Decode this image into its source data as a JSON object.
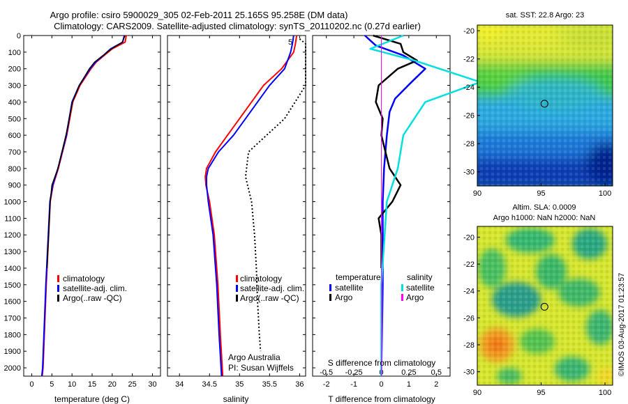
{
  "title": {
    "line1": "Argo profile: csiro 5900029_305 02-Feb-2011 25.165S 95.258E (DM data)",
    "line2": "Climatology: CARS2009. Satellite-adjusted climatology: synTS_20110202.nc (0.27d earlier)"
  },
  "depth_ticks": [
    "0",
    "100",
    "200",
    "300",
    "400",
    "500",
    "600",
    "700",
    "800",
    "900",
    "1000",
    "1100",
    "1200",
    "1300",
    "1400",
    "1500",
    "1600",
    "1700",
    "1800",
    "1900",
    "2000"
  ],
  "credit": "©IMOS 03-Aug-2017 01:23:57",
  "colors": {
    "climatology": "#ff0000",
    "satellite": "#0000ff",
    "argo": "#000000",
    "sat_salinity": "#00e0e0",
    "argo_salinity": "#ff00ff"
  },
  "chart_data": [
    {
      "id": "temperature",
      "type": "line",
      "xlabel": "temperature (deg C)",
      "xlim": [
        -2,
        32
      ],
      "ylim": [
        2050,
        0
      ],
      "xticks": [
        "0",
        "5",
        "10",
        "15",
        "20",
        "25",
        "30"
      ],
      "legend": {
        "entries": [
          "climatology",
          "satellite-adj. clim.",
          "Argo(..raw -QC)"
        ],
        "placement": "lower-center"
      },
      "series": [
        {
          "name": "climatology",
          "depth": [
            0,
            40,
            80,
            120,
            160,
            200,
            300,
            400,
            600,
            800,
            900,
            1000,
            1500,
            2000,
            2050
          ],
          "values": [
            23.5,
            23.2,
            20,
            18,
            16,
            14.7,
            12,
            10.2,
            8.7,
            6.6,
            5.3,
            4.6,
            3.6,
            2.8,
            2.6
          ]
        },
        {
          "name": "satellite-adj. clim.",
          "depth": [
            0,
            40,
            80,
            120,
            160,
            200,
            300,
            400,
            600,
            800,
            900,
            1000,
            1500,
            2000,
            2050
          ],
          "values": [
            23.0,
            22.6,
            19.6,
            17.8,
            15.8,
            14.5,
            11.8,
            10.0,
            8.6,
            6.5,
            5.2,
            4.5,
            3.5,
            2.7,
            2.5
          ]
        },
        {
          "name": "Argo(..raw -QC)",
          "depth": [
            0,
            40,
            80,
            120,
            160,
            200,
            300,
            400,
            600,
            800,
            900,
            1000,
            1200,
            1400
          ],
          "values": [
            23.2,
            22.5,
            19.8,
            17.7,
            15.6,
            14.3,
            11.8,
            10.1,
            8.5,
            6.5,
            5.0,
            4.6,
            4.2,
            3.8
          ]
        }
      ]
    },
    {
      "id": "salinity",
      "type": "line",
      "xlabel": "salinity",
      "xlim": [
        33.8,
        36.1
      ],
      "ylim": [
        2050,
        0
      ],
      "xticks": [
        "34",
        "34.5",
        "35",
        "35.5",
        "36"
      ],
      "legend": {
        "entries": [
          "climatology",
          "satellite-adj. clim.",
          "Argo(..raw -QC)"
        ],
        "placement": "lower-right"
      },
      "annotations": [
        "Argo Australia",
        "PI: Susan Wijffels",
        "5"
      ],
      "series": [
        {
          "name": "climatology",
          "depth": [
            0,
            50,
            100,
            200,
            300,
            400,
            500,
            600,
            700,
            800,
            850,
            900,
            1000,
            1200,
            1500,
            1800,
            2050
          ],
          "values": [
            35.95,
            35.93,
            35.9,
            35.7,
            35.4,
            35.2,
            35.0,
            34.8,
            34.6,
            34.45,
            34.43,
            34.44,
            34.5,
            34.58,
            34.64,
            34.68,
            34.72
          ]
        },
        {
          "name": "satellite-adj. clim.",
          "depth": [
            0,
            50,
            100,
            200,
            300,
            400,
            500,
            600,
            700,
            800,
            850,
            900,
            1000,
            1200,
            1500,
            1800,
            2050
          ],
          "values": [
            35.9,
            35.88,
            35.85,
            35.75,
            35.5,
            35.3,
            35.1,
            34.9,
            34.65,
            34.48,
            34.45,
            34.45,
            34.48,
            34.56,
            34.62,
            34.66,
            34.7
          ]
        },
        {
          "name": "Argo(..raw -QC)",
          "depth": [
            20,
            50,
            300,
            500,
            700,
            850,
            1000,
            1200,
            1400,
            1600,
            1800,
            1900
          ],
          "values": [
            36.0,
            36.1,
            36.1,
            35.75,
            35.15,
            35.1,
            35.2,
            35.25,
            35.28,
            35.3,
            35.33,
            35.35
          ]
        }
      ]
    },
    {
      "id": "difference",
      "type": "line",
      "xlabel": "T difference from climatology",
      "xlabel_top": "S difference from climatology",
      "xlim": [
        -2.5,
        2.5
      ],
      "ylim": [
        2050,
        0
      ],
      "xticks": [
        "-2",
        "-1",
        "0",
        "1",
        "2"
      ],
      "xticks_top": [
        "-0.5",
        "-0.25",
        "0",
        "0.25",
        "0.5"
      ],
      "legend": {
        "headers": [
          "temperature",
          "salinity"
        ],
        "entries": [
          "satellite",
          "Argo",
          "satellite",
          "Argo"
        ],
        "placement": "lower-center"
      },
      "series": [
        {
          "name": "satellite",
          "group": "temperature",
          "depth": [
            0,
            60,
            120,
            200,
            280,
            380,
            460,
            600,
            800,
            1000,
            1500,
            2050
          ],
          "values": [
            -0.6,
            -0.2,
            0.8,
            1.6,
            1.1,
            0.5,
            0.3,
            0.2,
            0.1,
            0.05,
            0.05,
            0.0
          ]
        },
        {
          "name": "Argo",
          "group": "temperature",
          "depth": [
            0,
            50,
            100,
            150,
            200,
            300,
            400,
            500,
            600,
            700,
            800,
            900,
            1000,
            1100,
            1200,
            1400
          ],
          "values": [
            -0.3,
            0.7,
            0.8,
            1.3,
            0.6,
            -0.1,
            -0.2,
            0.05,
            0.0,
            0.15,
            0.3,
            0.7,
            0.4,
            -0.1,
            0.0,
            0.0
          ]
        },
        {
          "name": "satellite",
          "group": "salinity",
          "depth": [
            0,
            80,
            150,
            280,
            400,
            600,
            800,
            1000,
            1500,
            2050
          ],
          "values": [
            0.2,
            -0.1,
            0.3,
            0.9,
            0.4,
            0.2,
            0.15,
            0.05,
            0.0,
            0.0
          ]
        },
        {
          "name": "Argo",
          "group": "salinity",
          "depth": [
            0,
            2050
          ],
          "values": [
            0.0,
            0.0
          ]
        }
      ]
    },
    {
      "id": "sst_map",
      "type": "heatmap",
      "title": "sat. SST: 22.8  Argo: 23",
      "xlim": [
        90,
        100.6
      ],
      "ylim": [
        -31,
        -19.6
      ],
      "xticks": [
        "90",
        "95",
        "100"
      ],
      "yticks": [
        "-20",
        "-22",
        "-24",
        "-26",
        "-28",
        "-30"
      ],
      "marker": {
        "lon": 95.26,
        "lat": -25.17
      }
    },
    {
      "id": "sla_map",
      "type": "heatmap",
      "title_line1": "Altim. SLA: 0.0009",
      "title_line2": "Argo h1000: NaN h2000: NaN",
      "xlim": [
        90,
        100.6
      ],
      "ylim": [
        -31,
        -19.2
      ],
      "xticks": [
        "90",
        "95",
        "100"
      ],
      "yticks": [
        "-20",
        "-22",
        "-24",
        "-26",
        "-28",
        "-30"
      ],
      "marker": {
        "lon": 95.26,
        "lat": -25.17
      }
    }
  ]
}
